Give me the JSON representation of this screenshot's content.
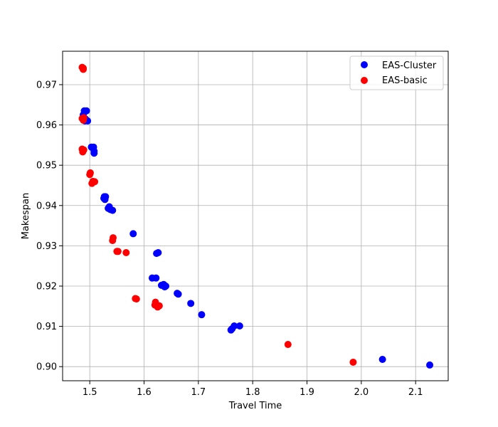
{
  "chart_data": {
    "type": "scatter",
    "title": "",
    "xlabel": "Travel Time",
    "ylabel": "Makespan",
    "xlim": [
      1.45,
      2.16
    ],
    "ylim": [
      0.8965,
      0.9783
    ],
    "xticks": [
      1.5,
      1.6,
      1.7,
      1.8,
      1.9,
      2.0,
      2.1
    ],
    "xtick_labels": [
      "1.5",
      "1.6",
      "1.7",
      "1.8",
      "1.9",
      "2.0",
      "2.1"
    ],
    "yticks": [
      0.9,
      0.91,
      0.92,
      0.93,
      0.94,
      0.95,
      0.96,
      0.97
    ],
    "ytick_labels": [
      "0.90",
      "0.91",
      "0.92",
      "0.93",
      "0.94",
      "0.95",
      "0.96",
      "0.97"
    ],
    "grid": true,
    "legend_position": "top-right",
    "series": [
      {
        "name": "EAS-Cluster",
        "color": "#0000ff",
        "points": [
          [
            1.49,
            0.9635
          ],
          [
            1.494,
            0.9635
          ],
          [
            1.488,
            0.9625
          ],
          [
            1.492,
            0.9615
          ],
          [
            1.496,
            0.961
          ],
          [
            1.491,
            0.961
          ],
          [
            1.503,
            0.9545
          ],
          [
            1.507,
            0.9545
          ],
          [
            1.508,
            0.9535
          ],
          [
            1.508,
            0.953
          ],
          [
            1.527,
            0.9422
          ],
          [
            1.529,
            0.9422
          ],
          [
            1.526,
            0.9418
          ],
          [
            1.528,
            0.9415
          ],
          [
            1.536,
            0.9397
          ],
          [
            1.534,
            0.9393
          ],
          [
            1.538,
            0.939
          ],
          [
            1.542,
            0.9388
          ],
          [
            1.58,
            0.933
          ],
          [
            1.623,
            0.9281
          ],
          [
            1.626,
            0.9283
          ],
          [
            1.615,
            0.922
          ],
          [
            1.622,
            0.922
          ],
          [
            1.632,
            0.9202
          ],
          [
            1.636,
            0.9204
          ],
          [
            1.64,
            0.92
          ],
          [
            1.638,
            0.9198
          ],
          [
            1.661,
            0.9182
          ],
          [
            1.663,
            0.918
          ],
          [
            1.686,
            0.9157
          ],
          [
            1.706,
            0.9129
          ],
          [
            1.76,
            0.9091
          ],
          [
            1.762,
            0.9094
          ],
          [
            1.766,
            0.9101
          ],
          [
            1.776,
            0.9101
          ],
          [
            2.039,
            0.9018
          ],
          [
            2.126,
            0.9004
          ]
        ]
      },
      {
        "name": "EAS-basic",
        "color": "#ff0000",
        "points": [
          [
            1.486,
            0.9743
          ],
          [
            1.488,
            0.9741
          ],
          [
            1.488,
            0.9738
          ],
          [
            1.486,
            0.9616
          ],
          [
            1.489,
            0.9618
          ],
          [
            1.488,
            0.9612
          ],
          [
            1.486,
            0.954
          ],
          [
            1.489,
            0.9538
          ],
          [
            1.487,
            0.9533
          ],
          [
            1.501,
            0.9481
          ],
          [
            1.5,
            0.9477
          ],
          [
            1.506,
            0.946
          ],
          [
            1.509,
            0.9459
          ],
          [
            1.504,
            0.9455
          ],
          [
            1.543,
            0.932
          ],
          [
            1.542,
            0.9313
          ],
          [
            1.55,
            0.9286
          ],
          [
            1.552,
            0.9286
          ],
          [
            1.567,
            0.9283
          ],
          [
            1.584,
            0.9169
          ],
          [
            1.586,
            0.9168
          ],
          [
            1.62,
            0.9153
          ],
          [
            1.621,
            0.916
          ],
          [
            1.625,
            0.9148
          ],
          [
            1.628,
            0.9151
          ],
          [
            1.865,
            0.9055
          ],
          [
            1.985,
            0.9011
          ]
        ]
      }
    ]
  }
}
